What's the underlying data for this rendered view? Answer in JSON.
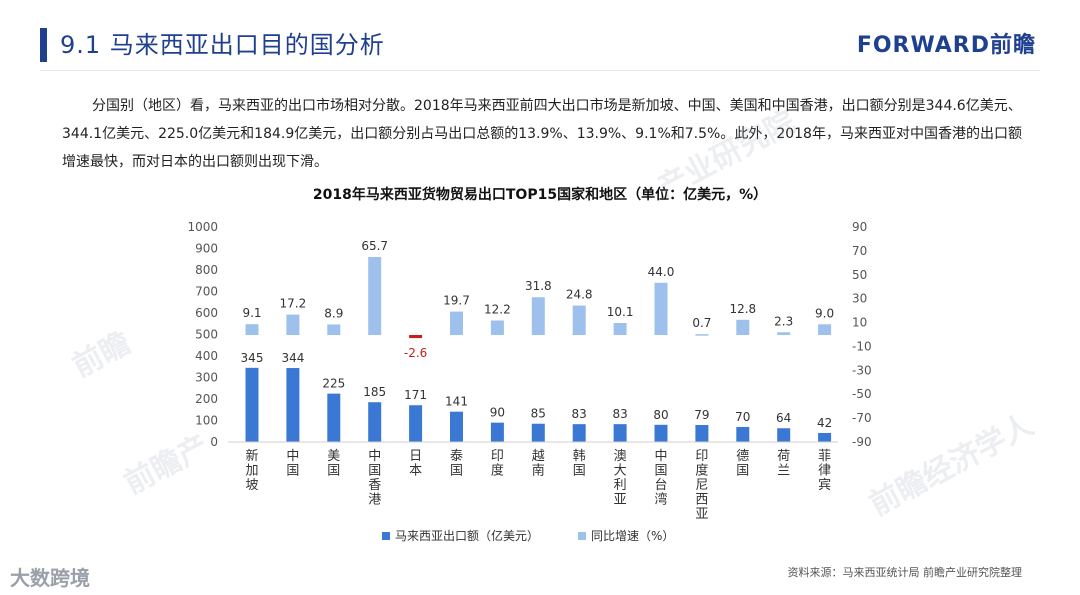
{
  "header": {
    "title": "9.1 马来西亚出口目的国分析",
    "brand": "FORWARD前瞻"
  },
  "intro": "分国别（地区）看，马来西亚的出口市场相对分散。2018年马来西亚前四大出口市场是新加坡、中国、美国和中国香港，出口额分别是344.6亿美元、344.1亿美元、225.0亿美元和184.9亿美元，出口额分别占马出口总额的13.9%、13.9%、9.1%和7.5%。此外，2018年，马来西亚对中国香港的出口额增速最快，而对日本的出口额则出现下滑。",
  "source": "资料来源：马来西亚统计局 前瞻产业研究院整理",
  "corner_logo": "大数跨境",
  "watermarks": [
    "前瞻",
    "前瞻产",
    "产业研究院",
    "前瞻经济学人"
  ],
  "colors": {
    "bar_value": "#3a78d4",
    "bar_growth": "#9dc0ec",
    "bar_negative": "#c81e1e",
    "brand": "#1f3f8f"
  },
  "chart_data": {
    "type": "bar",
    "title": "2018年马来西亚货物贸易出口TOP15国家和地区（单位：亿美元，%）",
    "categories": [
      "新加坡",
      "中国",
      "美国",
      "中国香港",
      "日本",
      "泰国",
      "印度",
      "越南",
      "韩国",
      "澳大利亚",
      "中国台湾",
      "印度尼西亚",
      "德国",
      "荷兰",
      "菲律宾"
    ],
    "series": [
      {
        "name": "马来西亚出口额（亿美元）",
        "axis": "left",
        "values": [
          345,
          344,
          225,
          185,
          171,
          141,
          90,
          85,
          83,
          83,
          80,
          79,
          70,
          64,
          42
        ],
        "labels": [
          "345",
          "344",
          "225",
          "185",
          "171",
          "141",
          "90",
          "85",
          "83",
          "83",
          "80",
          "79",
          "70",
          "64",
          "42"
        ]
      },
      {
        "name": "同比增速（%）",
        "axis": "right",
        "values": [
          9.1,
          17.2,
          8.9,
          65.7,
          -2.6,
          19.7,
          12.2,
          31.8,
          24.8,
          10.1,
          44.0,
          0.7,
          12.8,
          2.3,
          9.0
        ],
        "labels": [
          "9.1",
          "17.2",
          "8.9",
          "65.7",
          "-2.6",
          "19.7",
          "12.2",
          "31.8",
          "24.8",
          "10.1",
          "44.0",
          "0.7",
          "12.8",
          "2.3",
          "9.0"
        ]
      }
    ],
    "left_axis": {
      "ylim": [
        0,
        1000
      ],
      "ticks": [
        "0",
        "100",
        "200",
        "300",
        "400",
        "500",
        "600",
        "700",
        "800",
        "900",
        "1000"
      ]
    },
    "right_axis": {
      "ylim": [
        -90,
        90
      ],
      "ticks": [
        "-90",
        "-70",
        "-50",
        "-30",
        "-10",
        "10",
        "30",
        "50",
        "70",
        "90"
      ]
    },
    "grid": false,
    "legend": "bottom"
  }
}
